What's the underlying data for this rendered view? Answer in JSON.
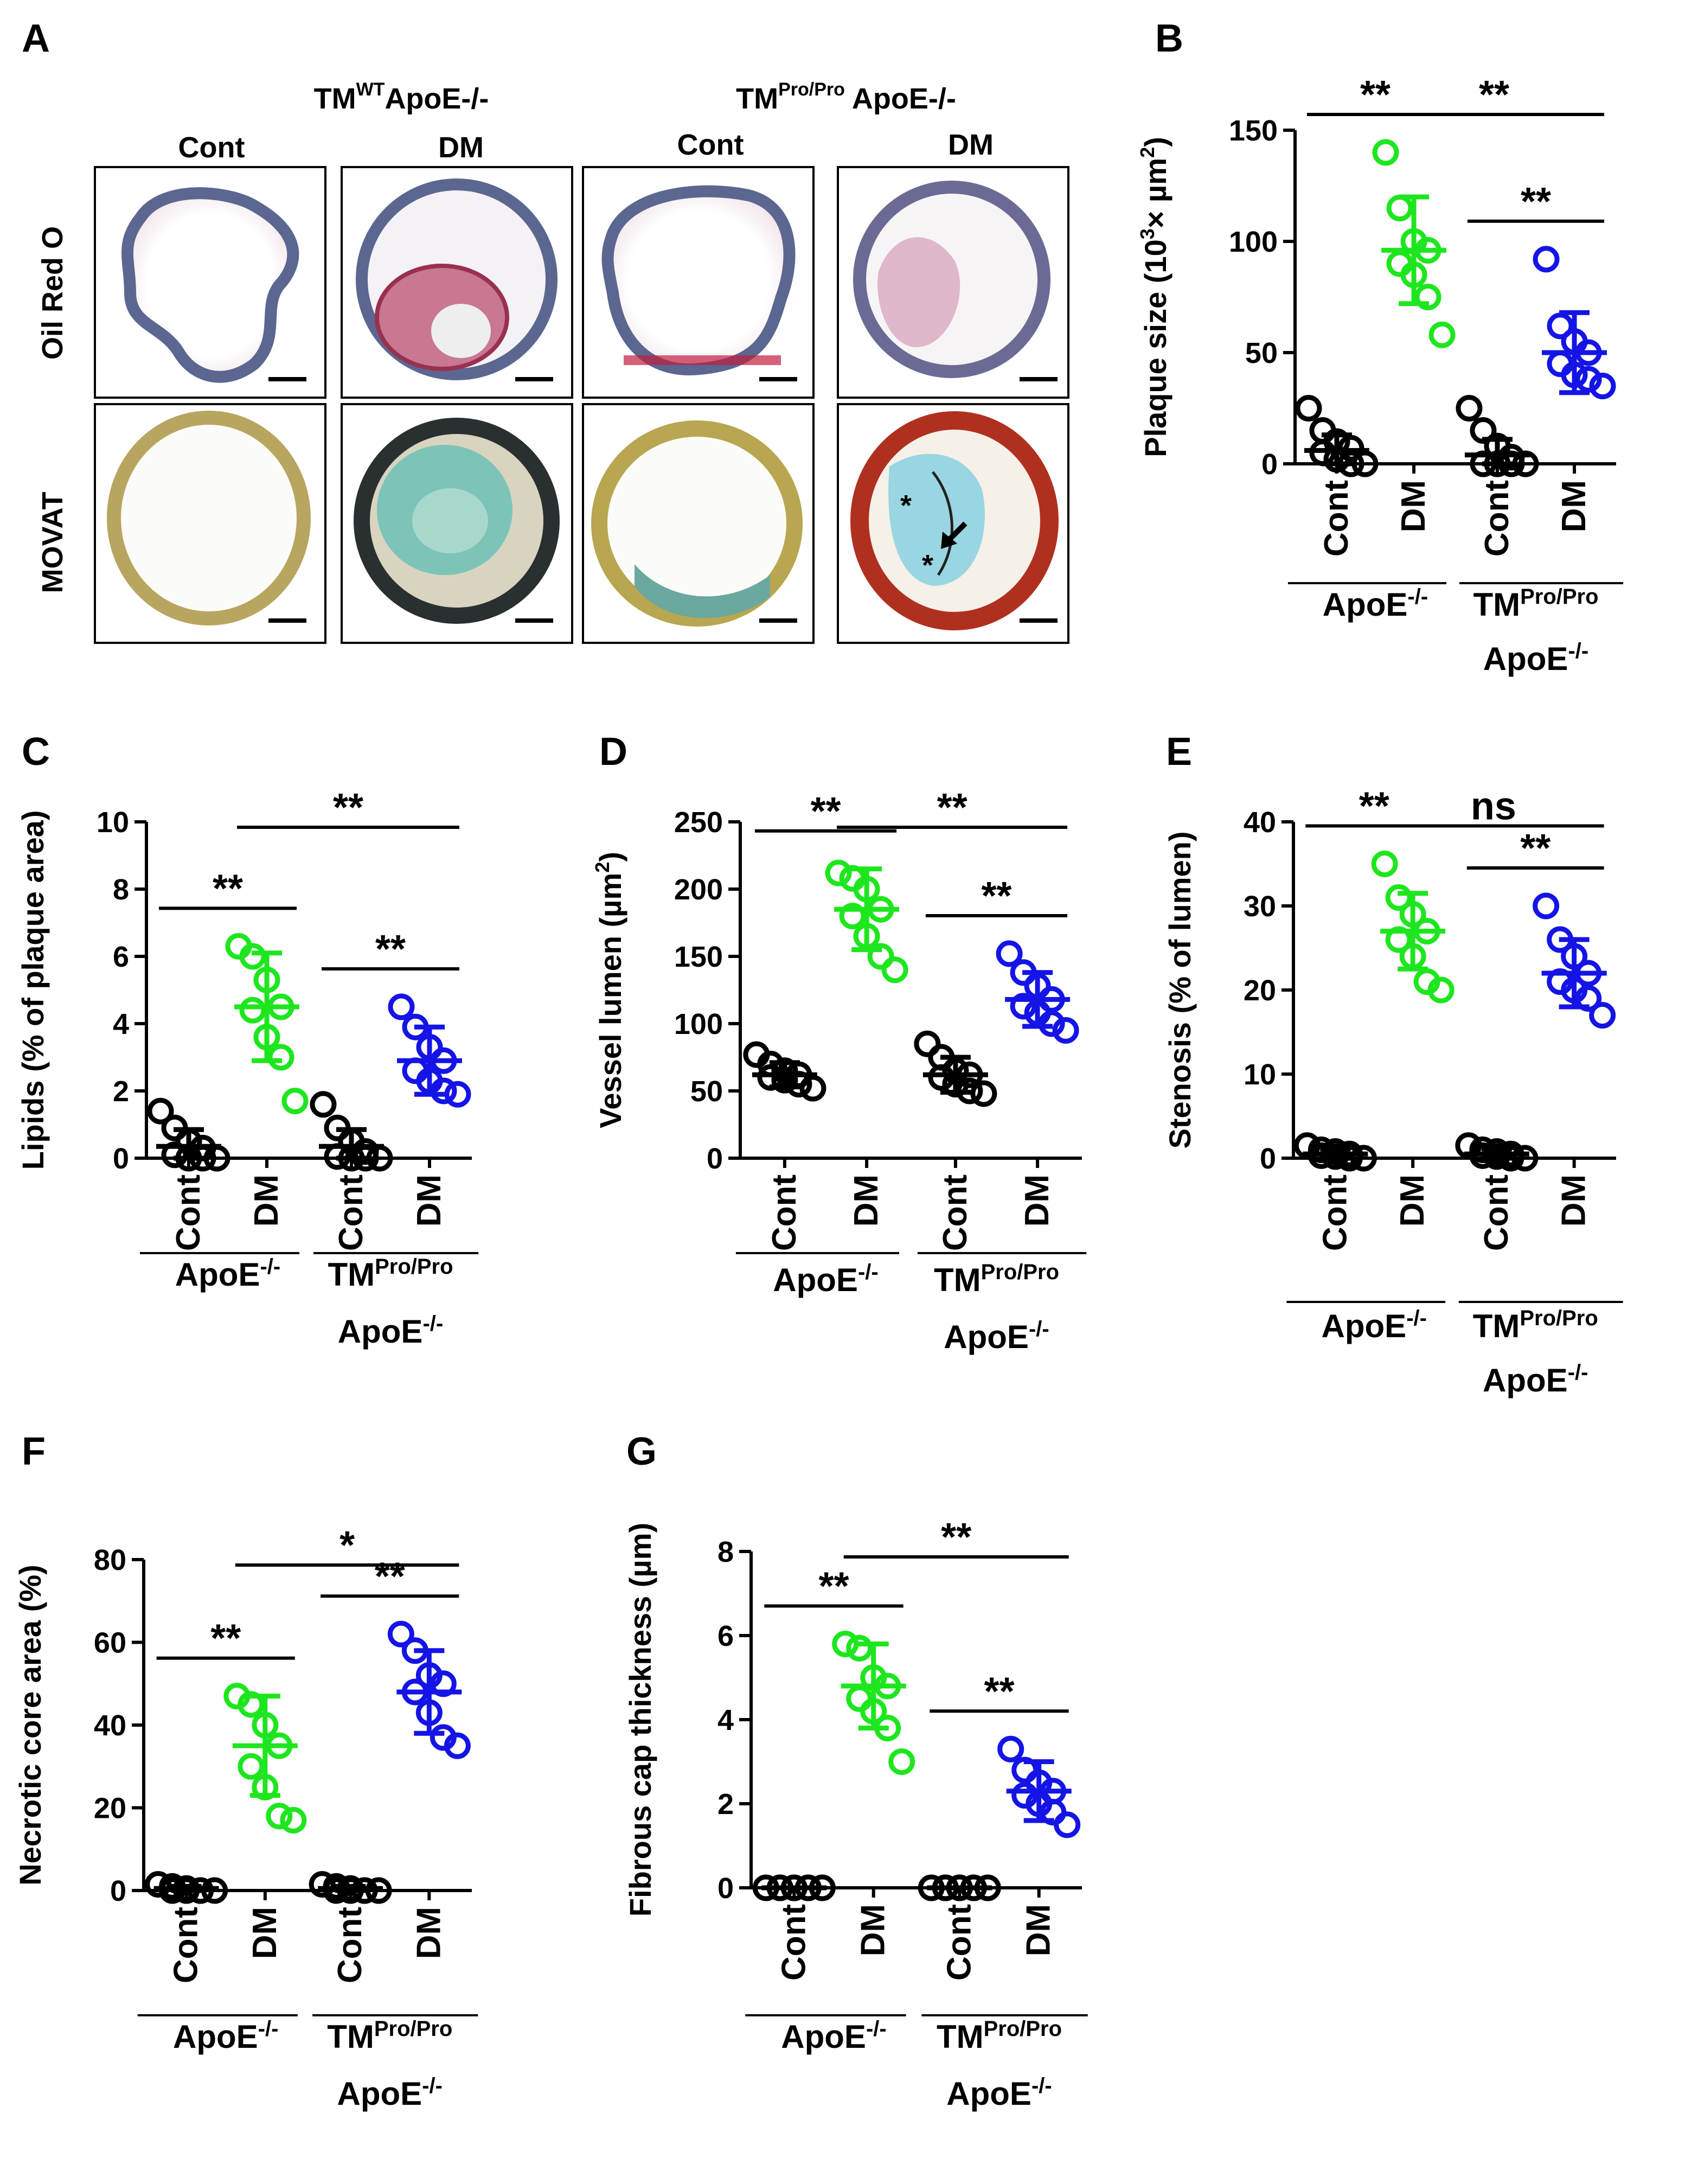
{
  "figure": {
    "panel_a": {
      "letter": "A",
      "top_labels": [
        {
          "main": "TM",
          "sup": "WT",
          "rest": "ApoE-/-"
        },
        {
          "main": "TM",
          "sup": "Pro/Pro",
          "rest": " ApoE-/-"
        }
      ],
      "column_labels": [
        "Cont",
        "DM",
        "Cont",
        "DM"
      ],
      "row_labels": [
        "Oil Red O",
        "MOVAT"
      ],
      "asterisk": "*"
    }
  },
  "colors": {
    "cont": "#000000",
    "dm_apoe": "#1ee61e",
    "dm_tm": "#1414e6"
  },
  "chart_data": [
    {
      "panel": "B",
      "type": "scatter",
      "ylabel_html": "Plaque size (10<tspan dy='-22' font-size='36'>3</tspan><tspan dy='22'>× µm</tspan><tspan dy='-22' font-size='36'>2</tspan><tspan dy='22'>)</tspan>",
      "ylabel": "Plaque size (10^3× µm^2)",
      "ylim": [
        0,
        150
      ],
      "yticks": [
        0,
        50,
        100,
        150
      ],
      "categories": [
        "Cont",
        "DM",
        "Cont",
        "DM"
      ],
      "groups": [
        "ApoE-/-",
        "TMPro/Pro ApoE-/-"
      ],
      "series": [
        {
          "name": "ApoE-/- Cont",
          "color": "cont",
          "mean": 6,
          "sd": 7,
          "points": [
            25,
            15,
            10,
            7,
            5,
            2,
            0,
            0
          ]
        },
        {
          "name": "ApoE-/- DM",
          "color": "dm_apoe",
          "mean": 96,
          "sd": 24,
          "points": [
            140,
            115,
            100,
            96,
            90,
            85,
            75,
            58
          ]
        },
        {
          "name": "TMPro/Pro ApoE-/- Cont",
          "color": "cont",
          "mean": 4,
          "sd": 7,
          "points": [
            25,
            15,
            8,
            3,
            0,
            0,
            0,
            0
          ]
        },
        {
          "name": "TMPro/Pro ApoE-/- DM",
          "color": "dm_tm",
          "mean": 50,
          "sd": 18,
          "points": [
            92,
            62,
            55,
            50,
            45,
            40,
            38,
            35
          ]
        }
      ],
      "significance": [
        {
          "label": "**",
          "from": 0,
          "to": 1
        },
        {
          "label": "**",
          "from": 1,
          "to": 3
        },
        {
          "label": "**",
          "from": 2,
          "to": 3
        }
      ]
    },
    {
      "panel": "C",
      "type": "scatter",
      "ylabel": "Lipids (% of plaque area)",
      "ylim": [
        0,
        10
      ],
      "yticks": [
        0,
        2,
        4,
        6,
        8,
        10
      ],
      "categories": [
        "Cont",
        "DM",
        "Cont",
        "DM"
      ],
      "groups": [
        "ApoE-/-",
        "TMPro/Pro ApoE-/-"
      ],
      "series": [
        {
          "name": "ApoE-/- Cont",
          "color": "cont",
          "mean": 0.35,
          "sd": 0.5,
          "points": [
            1.4,
            0.9,
            0.5,
            0.3,
            0.1,
            0,
            0,
            0
          ]
        },
        {
          "name": "ApoE-/- DM",
          "color": "dm_apoe",
          "mean": 4.5,
          "sd": 1.6,
          "points": [
            6.3,
            6.0,
            5.3,
            4.5,
            4.4,
            3.6,
            3.0,
            1.7
          ]
        },
        {
          "name": "TMPro/Pro ApoE-/- Cont",
          "color": "cont",
          "mean": 0.35,
          "sd": 0.5,
          "points": [
            1.6,
            0.9,
            0.5,
            0.2,
            0.05,
            0,
            0,
            0
          ]
        },
        {
          "name": "TMPro/Pro ApoE-/- DM",
          "color": "dm_tm",
          "mean": 2.9,
          "sd": 1.0,
          "points": [
            4.5,
            3.9,
            3.3,
            2.9,
            2.6,
            2.3,
            2.0,
            1.9
          ]
        }
      ],
      "significance": [
        {
          "label": "**",
          "from": 0,
          "to": 1
        },
        {
          "label": "**",
          "from": 1,
          "to": 3
        },
        {
          "label": "**",
          "from": 2,
          "to": 3
        }
      ]
    },
    {
      "panel": "D",
      "type": "scatter",
      "ylabel_html": "Vessel lumen (µm<tspan dy='-22' font-size='36'>2</tspan><tspan dy='22'>)</tspan>",
      "ylabel": "Vessel lumen (µm^2)",
      "ylim": [
        0,
        250
      ],
      "yticks": [
        0,
        50,
        100,
        150,
        200,
        250
      ],
      "categories": [
        "Cont",
        "DM",
        "Cont",
        "DM"
      ],
      "groups": [
        "ApoE-/-",
        "TMPro/Pro ApoE-/-"
      ],
      "series": [
        {
          "name": "ApoE-/- Cont",
          "color": "cont",
          "mean": 62,
          "sd": 9,
          "points": [
            77,
            70,
            65,
            62,
            60,
            58,
            55,
            52
          ]
        },
        {
          "name": "ApoE-/- DM",
          "color": "dm_apoe",
          "mean": 185,
          "sd": 30,
          "points": [
            212,
            208,
            200,
            185,
            180,
            165,
            150,
            140
          ]
        },
        {
          "name": "TMPro/Pro ApoE-/- Cont",
          "color": "cont",
          "mean": 62,
          "sd": 13,
          "points": [
            85,
            75,
            65,
            62,
            60,
            55,
            50,
            48
          ]
        },
        {
          "name": "TMPro/Pro ApoE-/- DM",
          "color": "dm_tm",
          "mean": 118,
          "sd": 20,
          "points": [
            152,
            138,
            128,
            118,
            113,
            108,
            100,
            95
          ]
        }
      ],
      "significance": [
        {
          "label": "**",
          "from": 0,
          "to": 1
        },
        {
          "label": "**",
          "from": 1,
          "to": 3
        },
        {
          "label": "**",
          "from": 2,
          "to": 3
        }
      ]
    },
    {
      "panel": "E",
      "type": "scatter",
      "ylabel": "Stenosis (% of lumen)",
      "ylim": [
        0,
        40
      ],
      "yticks": [
        0,
        10,
        20,
        30,
        40
      ],
      "categories": [
        "Cont",
        "DM",
        "Cont",
        "DM"
      ],
      "groups": [
        "ApoE-/-",
        "TMPro/Pro ApoE-/-"
      ],
      "series": [
        {
          "name": "ApoE-/- Cont",
          "color": "cont",
          "mean": 0.5,
          "sd": 0.6,
          "points": [
            1.5,
            1.0,
            0.8,
            0.5,
            0.3,
            0.2,
            0,
            0
          ]
        },
        {
          "name": "ApoE-/- DM",
          "color": "dm_apoe",
          "mean": 27,
          "sd": 4.5,
          "points": [
            35,
            31,
            29,
            27,
            26,
            24,
            21,
            20
          ]
        },
        {
          "name": "TMPro/Pro ApoE-/- Cont",
          "color": "cont",
          "mean": 0.5,
          "sd": 0.6,
          "points": [
            1.5,
            1.0,
            0.8,
            0.5,
            0.3,
            0.2,
            0,
            0
          ]
        },
        {
          "name": "TMPro/Pro ApoE-/- DM",
          "color": "dm_tm",
          "mean": 22,
          "sd": 4,
          "points": [
            30,
            26,
            24,
            22,
            21,
            20,
            19,
            17
          ]
        }
      ],
      "significance": [
        {
          "label": "**",
          "from": 0,
          "to": 1
        },
        {
          "label": "ns",
          "from": 1,
          "to": 3
        },
        {
          "label": "**",
          "from": 2,
          "to": 3
        }
      ]
    },
    {
      "panel": "F",
      "type": "scatter",
      "ylabel": "Necrotic core area (%)",
      "ylim": [
        0,
        80
      ],
      "yticks": [
        0,
        20,
        40,
        60,
        80
      ],
      "categories": [
        "Cont",
        "DM",
        "Cont",
        "DM"
      ],
      "groups": [
        "ApoE-/-",
        "TMPro/Pro ApoE-/-"
      ],
      "series": [
        {
          "name": "ApoE-/- Cont",
          "color": "cont",
          "mean": 0.5,
          "sd": 0.5,
          "points": [
            1.5,
            1,
            0.5,
            0,
            0,
            0,
            0,
            0
          ]
        },
        {
          "name": "ApoE-/- DM",
          "color": "dm_apoe",
          "mean": 35,
          "sd": 12,
          "points": [
            47,
            45,
            40,
            35,
            30,
            25,
            18,
            17
          ]
        },
        {
          "name": "TMPro/Pro ApoE-/- Cont",
          "color": "cont",
          "mean": 0.5,
          "sd": 0.5,
          "points": [
            1.5,
            1,
            0.5,
            0,
            0,
            0,
            0,
            0
          ]
        },
        {
          "name": "TMPro/Pro ApoE-/- DM",
          "color": "dm_tm",
          "mean": 48,
          "sd": 10,
          "points": [
            62,
            58,
            52,
            50,
            48,
            43,
            37,
            35
          ]
        }
      ],
      "significance": [
        {
          "label": "**",
          "from": 0,
          "to": 1
        },
        {
          "label": "*",
          "from": 1,
          "to": 3
        },
        {
          "label": "**",
          "from": 2,
          "to": 3
        }
      ]
    },
    {
      "panel": "G",
      "type": "scatter",
      "ylabel": "Fibrous cap thickness (µm)",
      "ylim": [
        0,
        8
      ],
      "yticks": [
        0,
        2,
        4,
        6,
        8
      ],
      "categories": [
        "Cont",
        "DM",
        "Cont",
        "DM"
      ],
      "groups": [
        "ApoE-/-",
        "TMPro/Pro ApoE-/-"
      ],
      "series": [
        {
          "name": "ApoE-/- Cont",
          "color": "cont",
          "mean": 0,
          "sd": 0,
          "points": [
            0,
            0,
            0,
            0,
            0,
            0,
            0,
            0
          ]
        },
        {
          "name": "ApoE-/- DM",
          "color": "dm_apoe",
          "mean": 4.8,
          "sd": 1.0,
          "points": [
            5.8,
            5.7,
            5.0,
            4.8,
            4.5,
            4.2,
            3.8,
            3.0
          ]
        },
        {
          "name": "TMPro/Pro ApoE-/- Cont",
          "color": "cont",
          "mean": 0,
          "sd": 0,
          "points": [
            0,
            0,
            0,
            0,
            0,
            0,
            0,
            0
          ]
        },
        {
          "name": "TMPro/Pro ApoE-/- DM",
          "color": "dm_tm",
          "mean": 2.3,
          "sd": 0.7,
          "points": [
            3.3,
            2.8,
            2.5,
            2.3,
            2.2,
            2.0,
            1.8,
            1.5
          ]
        }
      ],
      "significance": [
        {
          "label": "**",
          "from": 0,
          "to": 1
        },
        {
          "label": "**",
          "from": 1,
          "to": 3
        },
        {
          "label": "**",
          "from": 2,
          "to": 3
        }
      ]
    }
  ]
}
